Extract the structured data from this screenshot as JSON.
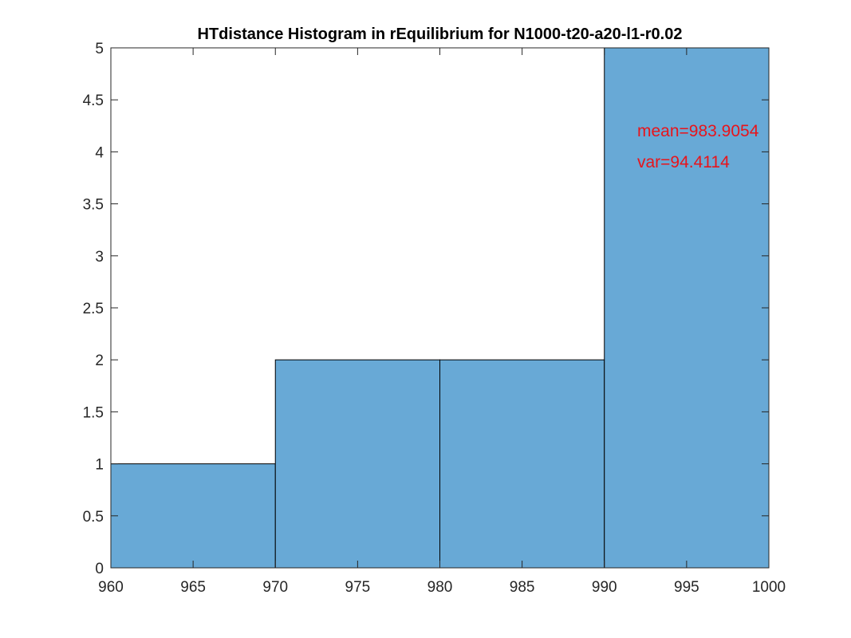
{
  "chart_data": {
    "type": "bar",
    "title": "HTdistance Histogram in rEquilibrium for N1000-t20-a20-l1-r0.02",
    "xlabel": "",
    "ylabel": "",
    "bin_edges": [
      960,
      970,
      980,
      990,
      1000
    ],
    "values": [
      1,
      2,
      2,
      5
    ],
    "xlim": [
      960,
      1000
    ],
    "ylim": [
      0,
      5
    ],
    "xticks": [
      960,
      965,
      970,
      975,
      980,
      985,
      990,
      995,
      1000
    ],
    "yticks": [
      0,
      0.5,
      1,
      1.5,
      2,
      2.5,
      3,
      3.5,
      4,
      4.5,
      5
    ],
    "xtick_labels": [
      "960",
      "965",
      "970",
      "975",
      "980",
      "985",
      "990",
      "995",
      "1000"
    ],
    "ytick_labels": [
      "0",
      "0.5",
      "1",
      "1.5",
      "2",
      "2.5",
      "3",
      "3.5",
      "4",
      "4.5",
      "5"
    ],
    "grid": false,
    "bar_color": "#68a9d6",
    "bar_edge_color": "#000000",
    "annotations": [
      {
        "text": "mean=983.9054",
        "x": 992,
        "y": 4.15,
        "color": "#e8141b"
      },
      {
        "text": "var=94.4114",
        "x": 992,
        "y": 3.85,
        "color": "#e8141b"
      }
    ]
  }
}
